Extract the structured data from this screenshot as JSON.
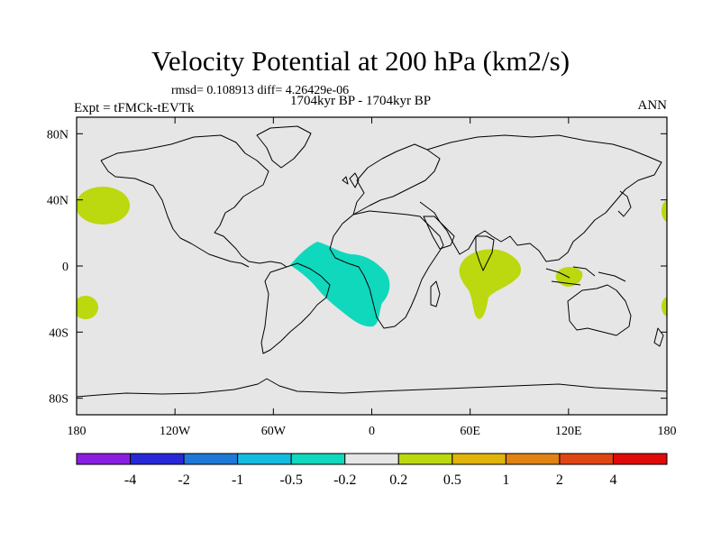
{
  "title": "Velocity Potential at 200 hPa (km2/s)",
  "stats": "rmsd= 0.108913 diff= 4.26429e-06",
  "expt_label": "Expt = tFMCk-tEVTk",
  "period_label": "1704kyr BP - 1704kyr BP",
  "season_label": "ANN",
  "colors": {
    "ocean_land_background": "#e6e6e6",
    "positive_anomaly": "#bcd80e",
    "negative_anomaly": "#10d8bc"
  },
  "axes": {
    "x_ticks": [
      {
        "lon": -180,
        "label": "180"
      },
      {
        "lon": -120,
        "label": "120W"
      },
      {
        "lon": -60,
        "label": "60W"
      },
      {
        "lon": 0,
        "label": "0"
      },
      {
        "lon": 60,
        "label": "60E"
      },
      {
        "lon": 120,
        "label": "120E"
      },
      {
        "lon": 180,
        "label": "180"
      }
    ],
    "y_ticks": [
      {
        "lat": 80,
        "label": "80N"
      },
      {
        "lat": 40,
        "label": "40N"
      },
      {
        "lat": 0,
        "label": "0"
      },
      {
        "lat": -40,
        "label": "40S"
      },
      {
        "lat": -80,
        "label": "80S"
      }
    ],
    "lon_range": [
      -180,
      180
    ],
    "lat_range": [
      -90,
      90
    ]
  },
  "colorbar": {
    "colors": [
      "#8a1ee0",
      "#2828d8",
      "#1e78d8",
      "#14bce0",
      "#10d8bc",
      "#e6e6e6",
      "#bcd80e",
      "#e0b40a",
      "#e08214",
      "#e04614",
      "#e00a0a"
    ],
    "labels": [
      "-4",
      "-2",
      "-1",
      "-0.5",
      "-0.2",
      "0.2",
      "0.5",
      "1",
      "2",
      "4"
    ]
  }
}
